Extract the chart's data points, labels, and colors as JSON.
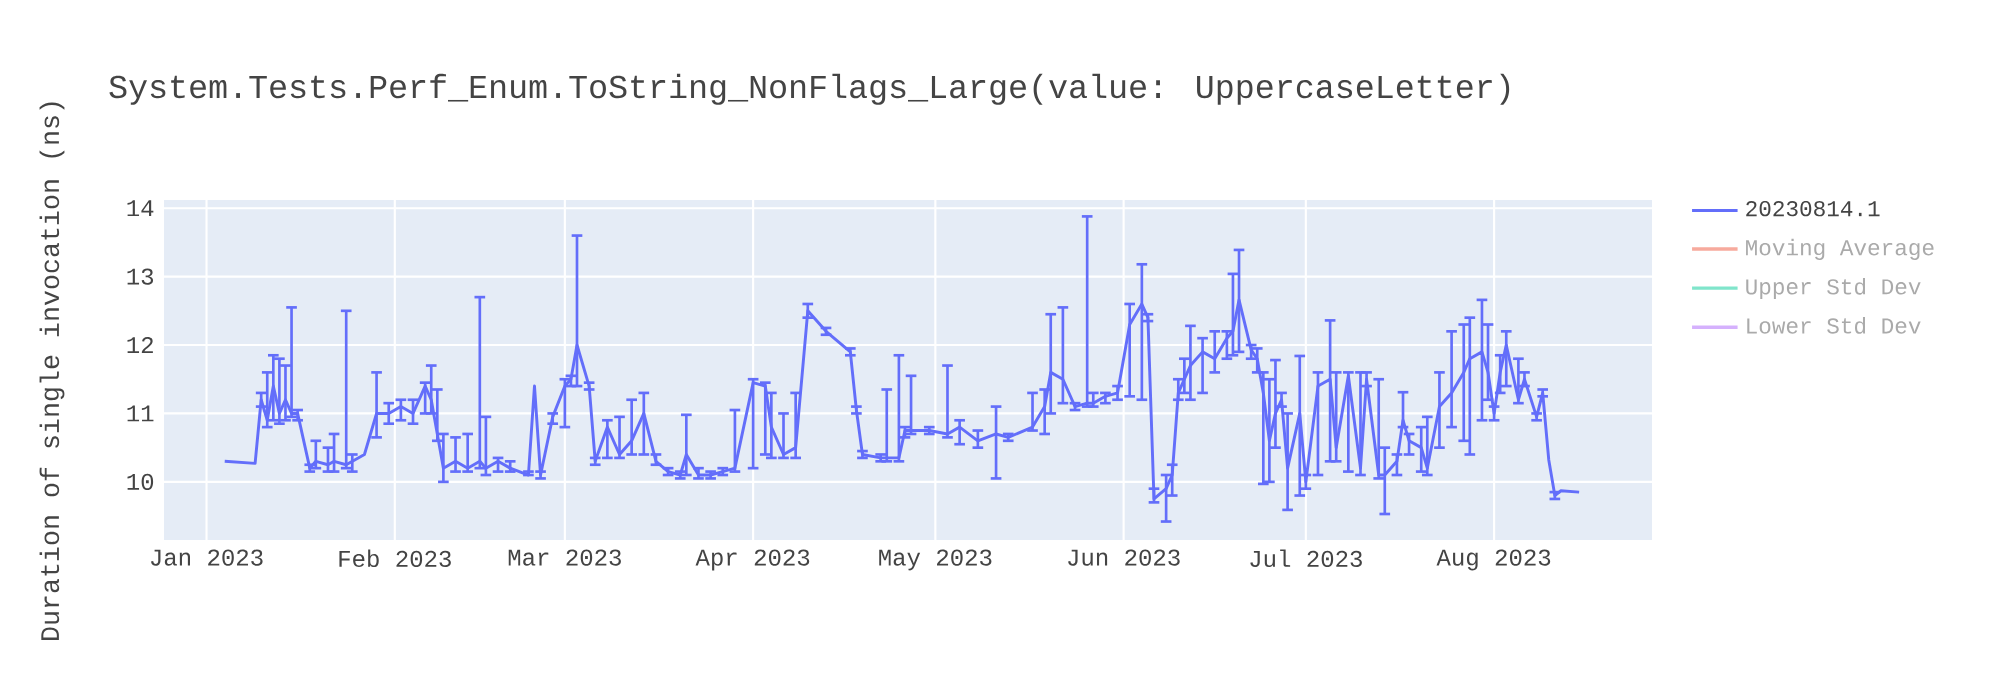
{
  "chart_data": {
    "type": "line",
    "title": "System.Tests.Perf_Enum.ToString_NonFlags_Large(value: UppercaseLetter)",
    "ylabel": "Duration of single invocation (ns)",
    "xlim": [
      "2022-12-25",
      "2023-08-27"
    ],
    "xticks": [
      {
        "value": "2023-01-01",
        "label": "Jan 2023"
      },
      {
        "value": "2023-02-01",
        "label": "Feb 2023"
      },
      {
        "value": "2023-03-01",
        "label": "Mar 2023"
      },
      {
        "value": "2023-04-01",
        "label": "Apr 2023"
      },
      {
        "value": "2023-05-01",
        "label": "May 2023"
      },
      {
        "value": "2023-06-01",
        "label": "Jun 2023"
      },
      {
        "value": "2023-07-01",
        "label": "Jul 2023"
      },
      {
        "value": "2023-08-01",
        "label": "Aug 2023"
      }
    ],
    "ylim": [
      9.15,
      14.12
    ],
    "yticks": [
      10,
      11,
      12,
      13,
      14
    ],
    "grid": true,
    "legend": "top right",
    "marker": "none",
    "line_style": "solid",
    "x": [
      "2023-01-04",
      "2023-01-09",
      "2023-01-10",
      "2023-01-11",
      "2023-01-12",
      "2023-01-13",
      "2023-01-14",
      "2023-01-15",
      "2023-01-16",
      "2023-01-18",
      "2023-01-19",
      "2023-01-21",
      "2023-01-22",
      "2023-01-24",
      "2023-01-25",
      "2023-01-27",
      "2023-01-29",
      "2023-01-31",
      "2023-02-02",
      "2023-02-04",
      "2023-02-06",
      "2023-02-07",
      "2023-02-08",
      "2023-02-09",
      "2023-02-11",
      "2023-02-13",
      "2023-02-15",
      "2023-02-16",
      "2023-02-18",
      "2023-02-20",
      "2023-02-23",
      "2023-02-24",
      "2023-02-25",
      "2023-02-27",
      "2023-03-01",
      "2023-03-02",
      "2023-03-03",
      "2023-03-05",
      "2023-03-06",
      "2023-03-08",
      "2023-03-10",
      "2023-03-12",
      "2023-03-14",
      "2023-03-16",
      "2023-03-18",
      "2023-03-20",
      "2023-03-21",
      "2023-03-23",
      "2023-03-25",
      "2023-03-27",
      "2023-03-29",
      "2023-04-01",
      "2023-04-03",
      "2023-04-04",
      "2023-04-06",
      "2023-04-08",
      "2023-04-10",
      "2023-04-13",
      "2023-04-17",
      "2023-04-18",
      "2023-04-19",
      "2023-04-22",
      "2023-04-23",
      "2023-04-25",
      "2023-04-26",
      "2023-04-27",
      "2023-04-30",
      "2023-05-03",
      "2023-05-05",
      "2023-05-08",
      "2023-05-11",
      "2023-05-13",
      "2023-05-17",
      "2023-05-19",
      "2023-05-20",
      "2023-05-22",
      "2023-05-24",
      "2023-05-26",
      "2023-05-27",
      "2023-05-29",
      "2023-05-31",
      "2023-06-02",
      "2023-06-04",
      "2023-06-05",
      "2023-06-06",
      "2023-06-08",
      "2023-06-09",
      "2023-06-10",
      "2023-06-11",
      "2023-06-12",
      "2023-06-14",
      "2023-06-16",
      "2023-06-18",
      "2023-06-19",
      "2023-06-20",
      "2023-06-22",
      "2023-06-23",
      "2023-06-24",
      "2023-06-25",
      "2023-06-26",
      "2023-06-27",
      "2023-06-28",
      "2023-06-30",
      "2023-07-01",
      "2023-07-03",
      "2023-07-05",
      "2023-07-06",
      "2023-07-08",
      "2023-07-10",
      "2023-07-11",
      "2023-07-13",
      "2023-07-14",
      "2023-07-16",
      "2023-07-17",
      "2023-07-18",
      "2023-07-20",
      "2023-07-21",
      "2023-07-23",
      "2023-07-25",
      "2023-07-27",
      "2023-07-28",
      "2023-07-30",
      "2023-07-31",
      "2023-08-01",
      "2023-08-02",
      "2023-08-03",
      "2023-08-05",
      "2023-08-06",
      "2023-08-08",
      "2023-08-09",
      "2023-08-10",
      "2023-08-11",
      "2023-08-12",
      "2023-08-15"
    ],
    "series": [
      {
        "name": "20230814.1",
        "color": "#636efa",
        "values": [
          10.3,
          10.27,
          11.2,
          10.9,
          11.4,
          11.0,
          11.2,
          11.0,
          11.0,
          10.2,
          10.3,
          10.25,
          10.3,
          10.25,
          10.3,
          10.4,
          11.0,
          11.0,
          11.1,
          11.0,
          11.4,
          11.2,
          10.7,
          10.2,
          10.3,
          10.2,
          10.3,
          10.2,
          10.3,
          10.2,
          10.1,
          11.4,
          10.1,
          10.95,
          11.4,
          11.5,
          12.0,
          11.4,
          10.3,
          10.8,
          10.4,
          10.6,
          11.0,
          10.3,
          10.15,
          10.1,
          10.4,
          10.1,
          10.1,
          10.15,
          10.2,
          11.45,
          11.4,
          10.8,
          10.4,
          10.5,
          12.5,
          12.2,
          11.9,
          11.05,
          10.4,
          10.35,
          10.35,
          10.35,
          10.75,
          10.75,
          10.75,
          10.7,
          10.8,
          10.6,
          10.7,
          10.65,
          10.8,
          11.1,
          11.6,
          11.5,
          11.1,
          11.15,
          11.15,
          11.25,
          11.3,
          12.3,
          12.6,
          12.4,
          9.75,
          9.9,
          10.1,
          11.3,
          11.5,
          11.7,
          11.9,
          11.8,
          12.1,
          12.2,
          12.66,
          11.93,
          11.8,
          11.3,
          10.6,
          11.0,
          11.2,
          10.2,
          11.0,
          10.0,
          11.4,
          11.5,
          10.5,
          11.55,
          10.2,
          11.5,
          10.1,
          10.1,
          10.3,
          10.9,
          10.6,
          10.5,
          10.2,
          11.1,
          11.3,
          11.6,
          11.8,
          11.9,
          11.6,
          11.0,
          11.6,
          12.0,
          11.2,
          11.5,
          10.95,
          11.3,
          10.32,
          9.8,
          9.87,
          9.85
        ],
        "errors": [
          null,
          null,
          [
            11.1,
            11.3
          ],
          [
            10.8,
            11.6
          ],
          [
            10.9,
            11.85
          ],
          [
            10.85,
            11.8
          ],
          [
            10.9,
            11.7
          ],
          [
            10.95,
            12.55
          ],
          [
            10.9,
            11.05
          ],
          [
            10.15,
            10.25
          ],
          [
            10.2,
            10.6
          ],
          [
            10.15,
            10.5
          ],
          [
            10.15,
            10.7
          ],
          [
            10.2,
            12.5
          ],
          [
            10.15,
            10.4
          ],
          null,
          [
            10.65,
            11.6
          ],
          [
            10.85,
            11.15
          ],
          [
            10.9,
            11.2
          ],
          [
            10.85,
            11.2
          ],
          [
            11.0,
            11.45
          ],
          [
            11.0,
            11.7
          ],
          [
            10.6,
            11.35
          ],
          [
            10.0,
            10.7
          ],
          [
            10.15,
            10.65
          ],
          [
            10.15,
            10.7
          ],
          [
            10.2,
            12.7
          ],
          [
            10.1,
            10.95
          ],
          [
            10.15,
            10.35
          ],
          [
            10.15,
            10.3
          ],
          [
            10.1,
            10.15
          ],
          null,
          [
            10.05,
            10.15
          ],
          [
            10.85,
            11.0
          ],
          [
            10.8,
            11.5
          ],
          [
            11.4,
            11.55
          ],
          [
            11.4,
            13.6
          ],
          [
            11.35,
            11.45
          ],
          [
            10.25,
            10.35
          ],
          [
            10.35,
            10.9
          ],
          [
            10.35,
            10.95
          ],
          [
            10.4,
            11.2
          ],
          [
            10.4,
            11.3
          ],
          [
            10.25,
            10.4
          ],
          [
            10.1,
            10.2
          ],
          [
            10.05,
            10.15
          ],
          [
            10.1,
            10.98
          ],
          [
            10.05,
            10.2
          ],
          [
            10.05,
            10.15
          ],
          [
            10.1,
            10.2
          ],
          [
            10.15,
            11.05
          ],
          [
            10.2,
            11.5
          ],
          [
            10.4,
            11.45
          ],
          [
            10.35,
            11.3
          ],
          [
            10.35,
            11.0
          ],
          [
            10.35,
            11.3
          ],
          [
            12.4,
            12.6
          ],
          [
            12.15,
            12.25
          ],
          [
            11.85,
            11.95
          ],
          [
            11.0,
            11.1
          ],
          [
            10.35,
            10.45
          ],
          [
            10.3,
            10.4
          ],
          [
            10.3,
            11.35
          ],
          [
            10.3,
            11.85
          ],
          [
            10.65,
            10.8
          ],
          [
            10.7,
            11.55
          ],
          [
            10.7,
            10.8
          ],
          [
            10.65,
            11.7
          ],
          [
            10.55,
            10.9
          ],
          [
            10.5,
            10.75
          ],
          [
            10.05,
            11.1
          ],
          [
            10.6,
            10.7
          ],
          [
            10.75,
            11.3
          ],
          [
            10.7,
            11.35
          ],
          [
            11.0,
            12.45
          ],
          [
            11.15,
            12.55
          ],
          [
            11.05,
            11.15
          ],
          [
            11.1,
            13.88
          ],
          [
            11.1,
            11.3
          ],
          [
            11.15,
            11.3
          ],
          [
            11.2,
            11.4
          ],
          [
            11.25,
            12.6
          ],
          [
            11.2,
            13.18
          ],
          [
            12.35,
            12.45
          ],
          [
            9.7,
            9.9
          ],
          [
            9.42,
            10.1
          ],
          [
            9.8,
            10.25
          ],
          [
            11.2,
            11.5
          ],
          [
            11.3,
            11.8
          ],
          [
            11.2,
            12.28
          ],
          [
            11.3,
            12.1
          ],
          [
            11.6,
            12.2
          ],
          [
            11.8,
            12.2
          ],
          [
            11.85,
            13.04
          ],
          [
            11.9,
            13.39
          ],
          [
            11.8,
            12.0
          ],
          [
            11.6,
            11.95
          ],
          [
            9.97,
            11.6
          ],
          [
            10.0,
            11.5
          ],
          [
            10.5,
            11.78
          ],
          [
            11.1,
            11.3
          ],
          [
            9.59,
            11.0
          ],
          [
            9.8,
            11.84
          ],
          [
            9.9,
            10.1
          ],
          [
            10.1,
            11.6
          ],
          [
            10.3,
            12.36
          ],
          [
            10.3,
            11.6
          ],
          [
            10.15,
            11.6
          ],
          [
            10.1,
            11.6
          ],
          [
            11.4,
            11.6
          ],
          [
            10.05,
            11.5
          ],
          [
            9.53,
            10.5
          ],
          [
            10.1,
            10.4
          ],
          [
            10.8,
            11.31
          ],
          [
            10.4,
            10.7
          ],
          [
            10.15,
            10.8
          ],
          [
            10.1,
            10.95
          ],
          [
            10.5,
            11.6
          ],
          [
            10.8,
            12.2
          ],
          [
            10.6,
            12.3
          ],
          [
            10.4,
            12.4
          ],
          [
            10.9,
            12.66
          ],
          [
            11.2,
            12.3
          ],
          [
            10.9,
            11.1
          ],
          [
            11.3,
            11.85
          ],
          [
            11.4,
            12.2
          ],
          [
            11.15,
            11.8
          ],
          [
            11.4,
            11.6
          ],
          [
            10.9,
            11.0
          ],
          [
            11.25,
            11.35
          ],
          null,
          [
            9.75,
            9.85
          ],
          null,
          null
        ]
      },
      {
        "name": "Moving Average",
        "color": "#f7aa9d",
        "values": [
          null,
          null,
          null,
          null,
          null,
          null,
          null,
          null,
          null,
          null,
          null,
          null,
          null,
          null,
          null,
          null,
          null,
          null,
          null,
          null,
          null,
          null,
          null,
          null,
          null,
          null,
          null,
          null,
          null,
          null,
          null,
          null,
          null,
          null,
          null,
          null,
          null,
          null,
          null,
          null,
          null,
          null,
          null,
          null,
          null,
          null,
          null,
          null,
          null,
          null,
          null,
          null,
          null,
          null,
          null,
          null,
          null,
          null,
          null,
          null,
          null,
          null,
          null,
          null,
          null,
          null,
          null,
          null,
          null,
          null,
          null,
          null,
          null,
          null,
          null,
          null,
          null,
          null,
          null,
          null,
          null,
          null,
          null,
          null,
          null,
          null,
          null,
          null,
          null,
          null,
          null,
          null,
          null,
          null,
          null,
          null,
          null,
          null,
          null,
          null,
          null,
          null,
          null,
          null,
          null,
          null,
          null,
          null,
          null,
          null,
          null,
          null,
          null,
          null,
          null,
          null,
          null,
          null,
          null,
          null,
          null,
          null,
          null,
          null,
          null,
          null,
          null,
          null,
          null,
          null,
          null,
          null,
          null,
          null
        ]
      },
      {
        "name": "Upper Std Dev",
        "color": "#80e5cb",
        "values": [
          null,
          null,
          null,
          null,
          null,
          null,
          null,
          null,
          null,
          null,
          null,
          null,
          null,
          null,
          null,
          null,
          null,
          null,
          null,
          null,
          null,
          null,
          null,
          null,
          null,
          null,
          null,
          null,
          null,
          null,
          null,
          null,
          null,
          null,
          null,
          null,
          null,
          null,
          null,
          null,
          null,
          null,
          null,
          null,
          null,
          null,
          null,
          null,
          null,
          null,
          null,
          null,
          null,
          null,
          null,
          null,
          null,
          null,
          null,
          null,
          null,
          null,
          null,
          null,
          null,
          null,
          null,
          null,
          null,
          null,
          null,
          null,
          null,
          null,
          null,
          null,
          null,
          null,
          null,
          null,
          null,
          null,
          null,
          null,
          null,
          null,
          null,
          null,
          null,
          null,
          null,
          null,
          null,
          null,
          null,
          null,
          null,
          null,
          null,
          null,
          null,
          null,
          null,
          null,
          null,
          null,
          null,
          null,
          null,
          null,
          null,
          null,
          null,
          null,
          null,
          null,
          null,
          null,
          null,
          null,
          null,
          null,
          null,
          null,
          null,
          null,
          null,
          null,
          null,
          null,
          null,
          null,
          null,
          null
        ]
      },
      {
        "name": "Lower Std Dev",
        "color": "#d5b1fd",
        "values": [
          null,
          null,
          null,
          null,
          null,
          null,
          null,
          null,
          null,
          null,
          null,
          null,
          null,
          null,
          null,
          null,
          null,
          null,
          null,
          null,
          null,
          null,
          null,
          null,
          null,
          null,
          null,
          null,
          null,
          null,
          null,
          null,
          null,
          null,
          null,
          null,
          null,
          null,
          null,
          null,
          null,
          null,
          null,
          null,
          null,
          null,
          null,
          null,
          null,
          null,
          null,
          null,
          null,
          null,
          null,
          null,
          null,
          null,
          null,
          null,
          null,
          null,
          null,
          null,
          null,
          null,
          null,
          null,
          null,
          null,
          null,
          null,
          null,
          null,
          null,
          null,
          null,
          null,
          null,
          null,
          null,
          null,
          null,
          null,
          null,
          null,
          null,
          null,
          null,
          null,
          null,
          null,
          null,
          null,
          null,
          null,
          null,
          null,
          null,
          null,
          null,
          null,
          null,
          null,
          null,
          null,
          null,
          null,
          null,
          null,
          null,
          null,
          null,
          null,
          null,
          null,
          null,
          null,
          null,
          null,
          null,
          null,
          null,
          null,
          null,
          null,
          null,
          null,
          null,
          null,
          null,
          null,
          null,
          null
        ]
      }
    ]
  }
}
